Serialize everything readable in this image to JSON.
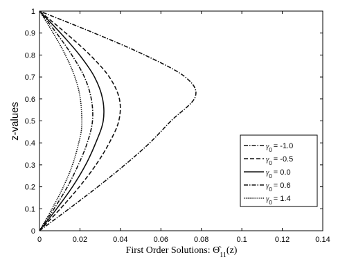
{
  "chart_data": {
    "type": "line",
    "xlabel": "First Order Solutions: Θ̂",
    "xlabel_subscript": "11",
    "xlabel_suffix": "(z)",
    "ylabel": "z-values",
    "xlim": [
      0,
      0.14
    ],
    "ylim": [
      0,
      1
    ],
    "x_ticks": [
      "0",
      "0.02",
      "0.04",
      "0.06",
      "0.08",
      "0.1",
      "0.12",
      "0.14"
    ],
    "y_ticks": [
      "0",
      "0.1",
      "0.2",
      "0.3",
      "0.4",
      "0.5",
      "0.6",
      "0.7",
      "0.8",
      "0.9",
      "1"
    ],
    "grid": false,
    "legend_position": "right",
    "legend_symbol": "γ",
    "legend_symbol_subscript": "0",
    "series": [
      {
        "name": "γ0 = -1.0",
        "legend_value": "= -1.0",
        "line_style": "dash-dot",
        "peak_x": 0.077,
        "peak_z": 0.61,
        "points": [
          [
            0,
            0
          ],
          [
            0.0146,
            0.1
          ],
          [
            0.0288,
            0.2
          ],
          [
            0.0422,
            0.3
          ],
          [
            0.0545,
            0.4
          ],
          [
            0.065,
            0.5
          ],
          [
            0.077,
            0.61
          ],
          [
            0.072,
            0.7
          ],
          [
            0.052,
            0.8
          ],
          [
            0.027,
            0.9
          ],
          [
            0,
            1
          ]
        ]
      },
      {
        "name": "γ0 = -0.5",
        "legend_value": "= -0.5",
        "line_style": "dashed",
        "peak_x": 0.04,
        "peak_z": 0.52,
        "points": [
          [
            0,
            0
          ],
          [
            0.0103,
            0.1
          ],
          [
            0.0197,
            0.2
          ],
          [
            0.0279,
            0.3
          ],
          [
            0.0345,
            0.4
          ],
          [
            0.0392,
            0.5
          ],
          [
            0.0395,
            0.6
          ],
          [
            0.0345,
            0.7
          ],
          [
            0.025,
            0.8
          ],
          [
            0.013,
            0.9
          ],
          [
            0,
            1
          ]
        ]
      },
      {
        "name": "γ0 = 0.0",
        "legend_value": "= 0.0",
        "line_style": "solid",
        "peak_x": 0.032,
        "peak_z": 0.5,
        "points": [
          [
            0,
            0
          ],
          [
            0.0085,
            0.1
          ],
          [
            0.0163,
            0.2
          ],
          [
            0.0228,
            0.3
          ],
          [
            0.0278,
            0.4
          ],
          [
            0.0315,
            0.5
          ],
          [
            0.0312,
            0.6
          ],
          [
            0.0272,
            0.7
          ],
          [
            0.0198,
            0.8
          ],
          [
            0.0104,
            0.9
          ],
          [
            0,
            1
          ]
        ]
      },
      {
        "name": "γ0 = 0.6",
        "legend_value": "= 0.6",
        "line_style": "dash-dot",
        "peak_x": 0.026,
        "peak_z": 0.48,
        "points": [
          [
            0,
            0
          ],
          [
            0.0072,
            0.1
          ],
          [
            0.0138,
            0.2
          ],
          [
            0.0192,
            0.3
          ],
          [
            0.0236,
            0.4
          ],
          [
            0.0262,
            0.5
          ],
          [
            0.0256,
            0.6
          ],
          [
            0.0222,
            0.7
          ],
          [
            0.016,
            0.8
          ],
          [
            0.0084,
            0.9
          ],
          [
            0,
            1
          ]
        ]
      },
      {
        "name": "γ0 = 1.4",
        "legend_value": "= 1.4",
        "line_style": "dotted",
        "peak_x": 0.021,
        "peak_z": 0.46,
        "points": [
          [
            0,
            0
          ],
          [
            0.0062,
            0.1
          ],
          [
            0.0118,
            0.2
          ],
          [
            0.0163,
            0.3
          ],
          [
            0.0194,
            0.4
          ],
          [
            0.0209,
            0.48
          ],
          [
            0.0202,
            0.6
          ],
          [
            0.0175,
            0.7
          ],
          [
            0.0128,
            0.8
          ],
          [
            0.0068,
            0.9
          ],
          [
            0,
            1
          ]
        ]
      }
    ]
  }
}
